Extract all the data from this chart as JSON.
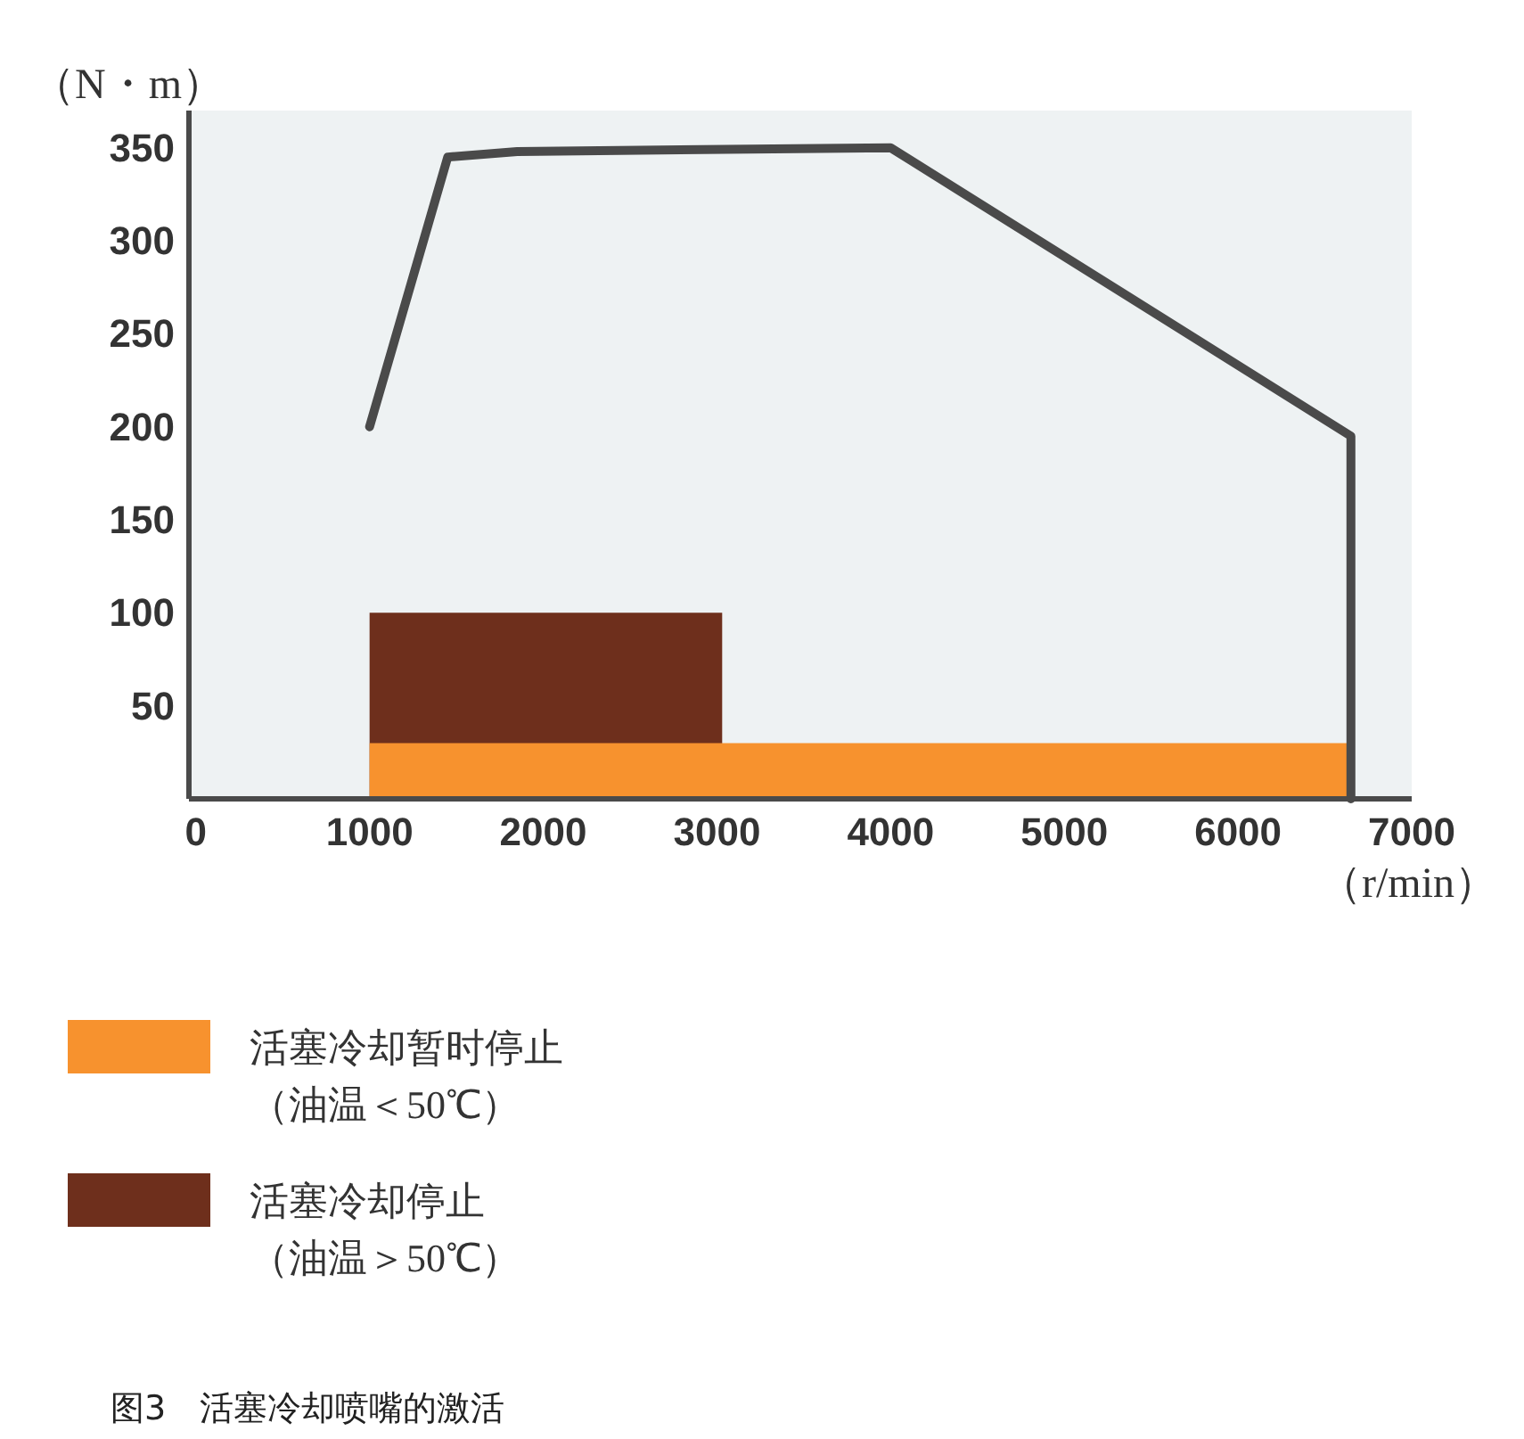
{
  "chart_data": {
    "type": "line",
    "ylabel": "（N・m）",
    "xlabel": "（r/min）",
    "xlim": [
      -40,
      7000
    ],
    "ylim": [
      0,
      370
    ],
    "xticks": [
      0,
      1000,
      2000,
      3000,
      4000,
      5000,
      6000,
      7000
    ],
    "yticks": [
      50,
      100,
      150,
      200,
      250,
      300,
      350
    ],
    "legend": "bottom",
    "series": [
      {
        "name": "活塞冷却暂时停止（油温＜50℃）",
        "type": "area",
        "color": "#f7922e",
        "x": [
          1000,
          6650
        ],
        "values": [
          30,
          30
        ]
      },
      {
        "name": "活塞冷却停止（油温＞50℃）",
        "type": "area",
        "color": "#6e2f1c",
        "x": [
          1000,
          3030
        ],
        "values": [
          100,
          100
        ]
      },
      {
        "color": "#4a4a4a",
        "x": [
          1000,
          1450,
          1850,
          4000,
          6650,
          6650
        ],
        "values": [
          200,
          345,
          348,
          350,
          195,
          0
        ]
      }
    ],
    "annotations": [
      "图3　活塞冷却喷嘴的激活"
    ]
  }
}
